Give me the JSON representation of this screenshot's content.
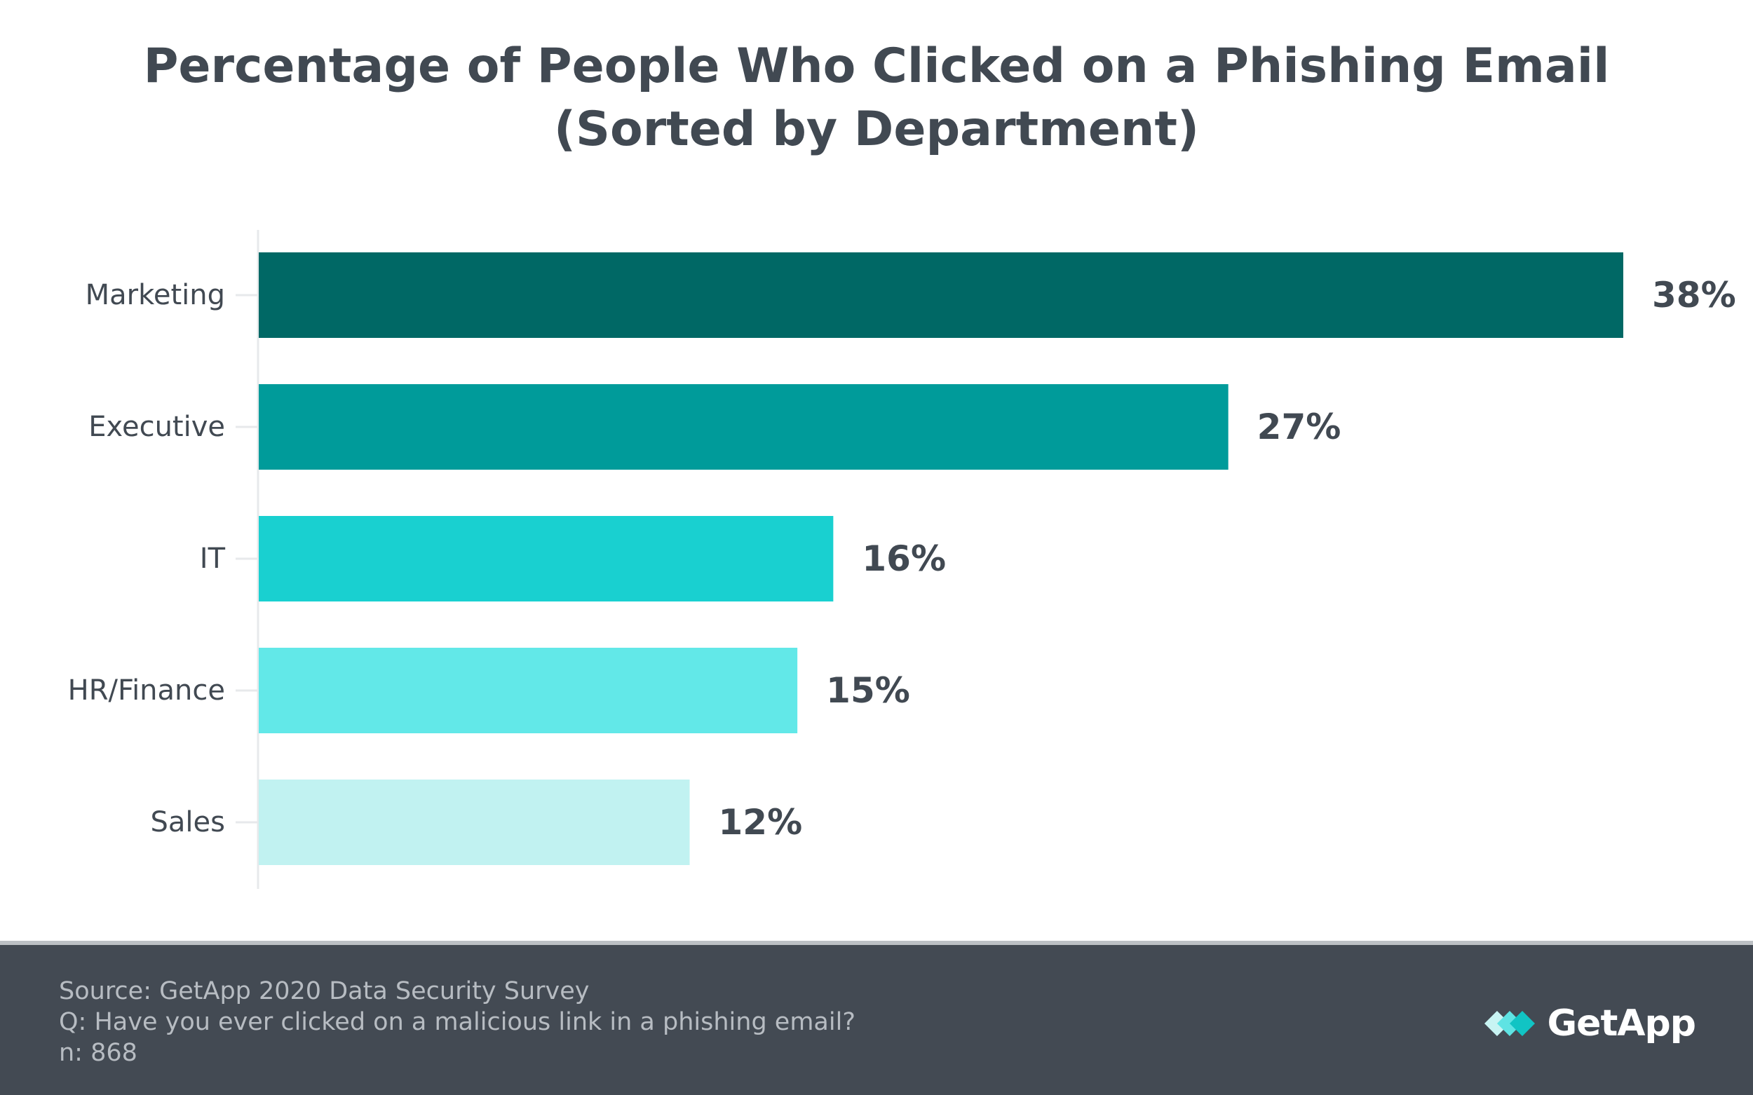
{
  "chart_data": {
    "type": "bar",
    "orientation": "horizontal",
    "title": [
      "Percentage of People Who Clicked on a Phishing Email",
      "(Sorted by Department)"
    ],
    "categories": [
      "Marketing",
      "Executive",
      "IT",
      "HR/Finance",
      "Sales"
    ],
    "values": [
      38,
      27,
      16,
      15,
      12
    ],
    "value_labels": [
      "38%",
      "27%",
      "16%",
      "15%",
      "12%"
    ],
    "bar_colors": [
      "#006865",
      "#009b9a",
      "#19d0d0",
      "#62e8e8",
      "#c1f2f1"
    ],
    "xlim": [
      0,
      38
    ],
    "grid": false,
    "legend": "none"
  },
  "footer": {
    "source": "Source: GetApp 2020 Data Security Survey",
    "question": "Q: Have you ever clicked on a malicious link in a phishing email?",
    "sample": "n: 868"
  },
  "brand": {
    "name": "GetApp",
    "icon": "getapp-logo-icon",
    "colors": {
      "light": "#c8f4f3",
      "mid": "#5fe3e3",
      "dark": "#11c4c4"
    }
  },
  "colors": {
    "title": "#414952",
    "axis_text": "#414952",
    "footer_bg": "#434a53",
    "footer_text": "#b7bcc2"
  }
}
